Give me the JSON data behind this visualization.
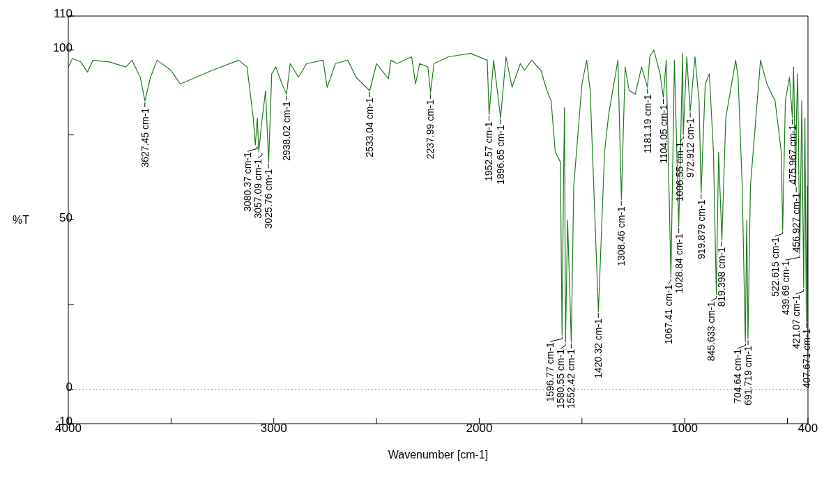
{
  "chart_data": {
    "type": "line",
    "xlabel": "Wavenumber [cm-1]",
    "ylabel": "%T",
    "xlim": [
      4000,
      400
    ],
    "xticks": [
      4000,
      {
        "value": 3500,
        "label": null
      },
      3000,
      {
        "value": 2500,
        "label": null
      },
      2000,
      {
        "value": 1500,
        "label": null
      },
      1000,
      {
        "value": 500,
        "label": null
      },
      400
    ],
    "ylim": [
      -10,
      110
    ],
    "yticks": [
      -10,
      0,
      {
        "value": 25,
        "label": null
      },
      50,
      {
        "value": 75,
        "label": null
      },
      100,
      110
    ],
    "marker": "none",
    "line_style": "solid",
    "ref_lines": [
      {
        "axis": "y",
        "value": 0,
        "label": null,
        "color": "#808080",
        "line_style": "dotted"
      }
    ],
    "series": [
      {
        "color": "#1e7b1e",
        "x": [
          4000,
          3980,
          3940,
          3907,
          3880,
          3800,
          3720,
          3690,
          3650,
          3627,
          3600,
          3568,
          3500,
          3455,
          3300,
          3170,
          3130,
          3100,
          3090,
          3080,
          3073,
          3060,
          3040,
          3025,
          3010,
          2990,
          2960,
          2938,
          2920,
          2880,
          2840,
          2760,
          2740,
          2700,
          2640,
          2600,
          2533,
          2500,
          2442,
          2430,
          2400,
          2329,
          2310,
          2290,
          2250,
          2237,
          2220,
          2150,
          2043,
          1961,
          1952,
          1930,
          1896,
          1870,
          1840,
          1800,
          1780,
          1745,
          1700,
          1670,
          1650,
          1630,
          1605,
          1597,
          1590,
          1585,
          1580,
          1570,
          1552,
          1540,
          1500,
          1477,
          1460,
          1420,
          1390,
          1370,
          1325,
          1308,
          1290,
          1270,
          1240,
          1210,
          1181,
          1170,
          1150,
          1120,
          1104,
          1090,
          1067,
          1050,
          1029,
          1010,
          1007,
          990,
          973,
          950,
          930,
          920,
          900,
          880,
          860,
          846,
          835,
          819,
          800,
          752,
          740,
          720,
          705,
          698,
          692,
          680,
          631,
          600,
          560,
          530,
          523,
          510,
          490,
          476,
          470,
          460,
          456,
          450,
          440,
          430,
          421,
          415,
          408,
          403,
          400
        ],
        "values": [
          95,
          97.5,
          96.5,
          93.5,
          97,
          96.5,
          95,
          97,
          92,
          85,
          92,
          97,
          94,
          90,
          94,
          97,
          95,
          80,
          72,
          80,
          70,
          78,
          88,
          67,
          93,
          95,
          90,
          87,
          96,
          92,
          96,
          97,
          89,
          96,
          97,
          92,
          88,
          96,
          91.5,
          97,
          96,
          98,
          90,
          96,
          95,
          87.5,
          96,
          98,
          99,
          97,
          81,
          97,
          80,
          98,
          89,
          96,
          94,
          97,
          94,
          88,
          85,
          70,
          67,
          16,
          60,
          83,
          14,
          50,
          14,
          60,
          90,
          97,
          88,
          23,
          70,
          81,
          97,
          56,
          95,
          88,
          87,
          95,
          89,
          98,
          100,
          93,
          86,
          97,
          33,
          97,
          48,
          99,
          75,
          98,
          82,
          98,
          85,
          58,
          90,
          93,
          70,
          28,
          70,
          44,
          80,
          97,
          92,
          60,
          14,
          50,
          15,
          60,
          97,
          90,
          85,
          70,
          47,
          85,
          92,
          80,
          95,
          60,
          80,
          93,
          40,
          85,
          30,
          80,
          20,
          60,
          2
        ]
      }
    ],
    "annotations": [
      {
        "text": "3627.45 cm-1",
        "x": 3627.45,
        "y": 85
      },
      {
        "text": "3080.37 cm-1",
        "x": 3080.37,
        "y": 72
      },
      {
        "text": "3057.09 cm-1",
        "x": 3057.09,
        "y": 70
      },
      {
        "text": "3025.76 cm-1",
        "x": 3025.76,
        "y": 67
      },
      {
        "text": "2938.02 cm-1",
        "x": 2938.02,
        "y": 87
      },
      {
        "text": "2533.04 cm-1",
        "x": 2533.04,
        "y": 88
      },
      {
        "text": "2237.99 cm-1",
        "x": 2237.99,
        "y": 87.5
      },
      {
        "text": "1952.57 cm-1",
        "x": 1952.57,
        "y": 81
      },
      {
        "text": "1896.65 cm-1",
        "x": 1896.65,
        "y": 80
      },
      {
        "text": "1596.77 cm-1",
        "x": 1596.77,
        "y": 16
      },
      {
        "text": "1580.55 cm-1",
        "x": 1580.55,
        "y": 14
      },
      {
        "text": "1552.42 cm-1",
        "x": 1552.42,
        "y": 14
      },
      {
        "text": "1420.32 cm-1",
        "x": 1420.32,
        "y": 23
      },
      {
        "text": "1308.46 cm-1",
        "x": 1308.46,
        "y": 56
      },
      {
        "text": "1181.19 cm-1",
        "x": 1181.19,
        "y": 89
      },
      {
        "text": "1104.05 cm-1",
        "x": 1104.05,
        "y": 86
      },
      {
        "text": "1067.41 cm-1",
        "x": 1067.41,
        "y": 33
      },
      {
        "text": "1028.84 cm-1",
        "x": 1028.84,
        "y": 48
      },
      {
        "text": "1006.55 cm-1",
        "x": 1006.55,
        "y": 75
      },
      {
        "text": "972.912 cm-1",
        "x": 972.912,
        "y": 82
      },
      {
        "text": "919.879 cm-1",
        "x": 919.879,
        "y": 58
      },
      {
        "text": "845.633 cm-1",
        "x": 845.633,
        "y": 28
      },
      {
        "text": "819.398 cm-1",
        "x": 819.398,
        "y": 44
      },
      {
        "text": "704.64 cm-1",
        "x": 704.64,
        "y": 14
      },
      {
        "text": "691.719 cm-1",
        "x": 691.719,
        "y": 15
      },
      {
        "text": "522.615 cm-1",
        "x": 522.615,
        "y": 47
      },
      {
        "text": "475.967 cm-1",
        "x": 475.967,
        "y": 80
      },
      {
        "text": "456.927 cm-1",
        "x": 456.927,
        "y": 60
      },
      {
        "text": "439.69 cm-1",
        "x": 439.69,
        "y": 40
      },
      {
        "text": "421.07 cm-1",
        "x": 421.07,
        "y": 30
      },
      {
        "text": "407.671 cm-1",
        "x": 407.671,
        "y": 20
      }
    ]
  }
}
